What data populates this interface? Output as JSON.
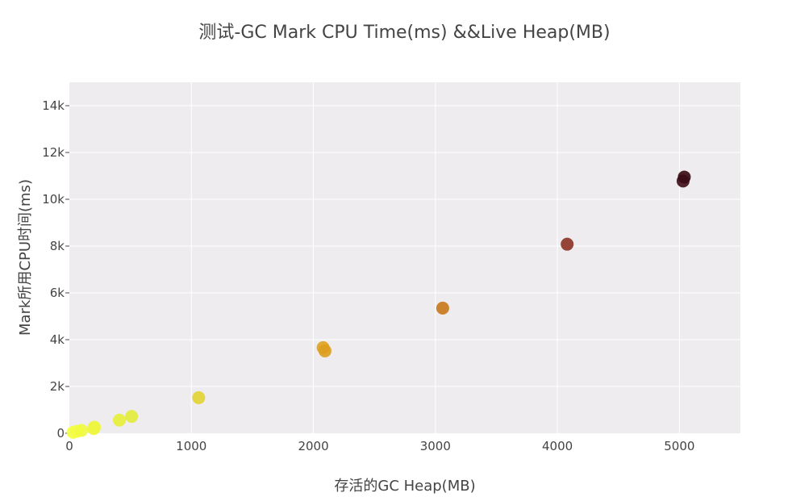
{
  "chart_data": {
    "type": "scatter",
    "title": "测试-GC Mark CPU Time(ms) &&Live Heap(MB)",
    "xlabel": "存活的GC Heap(MB)",
    "ylabel": "Mark所用CPU时间(ms)",
    "xlim": [
      0,
      5500
    ],
    "ylim": [
      0,
      15000
    ],
    "x_ticks": [
      0,
      1000,
      2000,
      3000,
      4000,
      5000
    ],
    "x_tick_labels": [
      "0",
      "1000",
      "2000",
      "3000",
      "4000",
      "5000"
    ],
    "y_ticks": [
      0,
      2000,
      4000,
      6000,
      8000,
      10000,
      12000,
      14000
    ],
    "y_tick_labels": [
      "0",
      "2k",
      "4k",
      "6k",
      "8k",
      "10k",
      "12k",
      "14k"
    ],
    "grid": true,
    "plot_background": "#eeecef",
    "colors": {
      "low": "#f0fa3c",
      "mid1": "#e5d43a",
      "mid2": "#df9e1e",
      "mid3": "#cf7a1a",
      "mid4": "#8f3424",
      "high": "#3d0c18"
    },
    "points": [
      {
        "x": 30,
        "y": 40,
        "color": "#f4ff44"
      },
      {
        "x": 60,
        "y": 80,
        "color": "#f2fd42"
      },
      {
        "x": 100,
        "y": 120,
        "color": "#f0fb40"
      },
      {
        "x": 200,
        "y": 200,
        "color": "#eef63e"
      },
      {
        "x": 205,
        "y": 260,
        "color": "#eef53e"
      },
      {
        "x": 410,
        "y": 560,
        "color": "#e6ef3a"
      },
      {
        "x": 510,
        "y": 720,
        "color": "#e2eb3a"
      },
      {
        "x": 1060,
        "y": 1520,
        "color": "#e2d235"
      },
      {
        "x": 2080,
        "y": 3660,
        "color": "#dfa322"
      },
      {
        "x": 2095,
        "y": 3520,
        "color": "#dc9e20"
      },
      {
        "x": 3060,
        "y": 5350,
        "color": "#c97a1c"
      },
      {
        "x": 4080,
        "y": 8080,
        "color": "#8d3528"
      },
      {
        "x": 5030,
        "y": 10780,
        "color": "#421018"
      },
      {
        "x": 5040,
        "y": 10950,
        "color": "#3a0c16"
      }
    ]
  }
}
